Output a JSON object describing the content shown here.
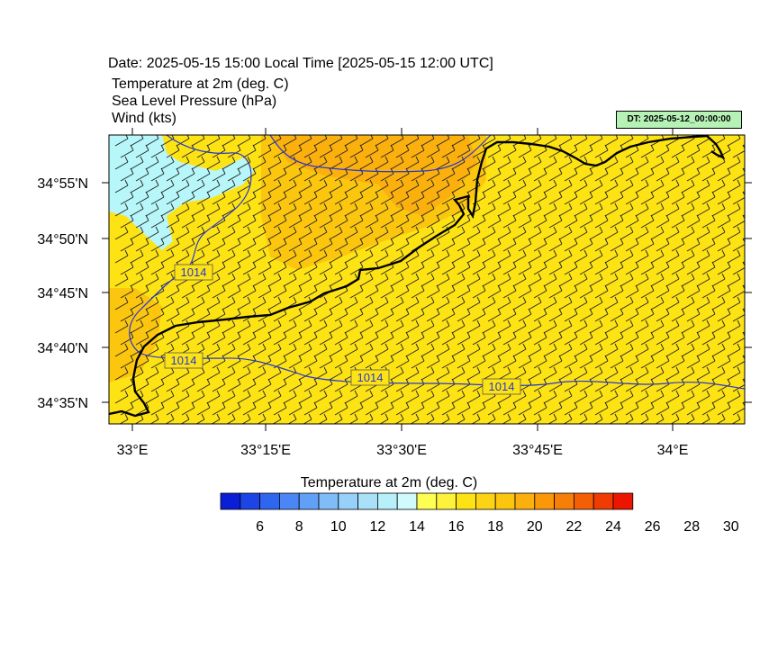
{
  "header": {
    "date_line": "Date: 2025-05-15  15:00 Local Time [2025-05-15  12:00 UTC]",
    "fields": [
      "Temperature at 2m   (deg. C)",
      "Sea Level Pressure   (hPa)",
      "Wind   (kts)"
    ],
    "dt_badge": "DT: 2025-05-12_00:00:00"
  },
  "map": {
    "lon_ticks": [
      "33°E",
      "33°15'E",
      "33°30'E",
      "33°45'E",
      "34°E"
    ],
    "lat_ticks": [
      "34°55'N",
      "34°50'N",
      "34°45'N",
      "34°40'N",
      "34°35'N"
    ],
    "isobar_labels": [
      "1014",
      "1014",
      "1014",
      "1014"
    ],
    "colors": {
      "base_temp": "#fee314",
      "warm_temp": "#fcc60f",
      "warmer_temp": "#fbb00e",
      "cool_temp": "#b7f7f9",
      "isobar": "#2437d6",
      "coast": "#000000",
      "wind_barb": "#222222"
    }
  },
  "colorbar": {
    "title": "Temperature at 2m  (deg. C)",
    "colors": [
      "#0a1ed6",
      "#1d44e5",
      "#2e66f0",
      "#4a86f5",
      "#62a0f7",
      "#80bcf8",
      "#97d0f9",
      "#a9e1f9",
      "#b8f0fa",
      "#d0fafc",
      "#fefe53",
      "#fef23a",
      "#fee314",
      "#fcd413",
      "#fcc60f",
      "#fbb00e",
      "#fb980a",
      "#f77e07",
      "#f45f05",
      "#f03c03",
      "#ec1600"
    ],
    "labels": [
      "6",
      "8",
      "10",
      "12",
      "14",
      "16",
      "18",
      "20",
      "22",
      "24",
      "26",
      "28",
      "30"
    ]
  }
}
